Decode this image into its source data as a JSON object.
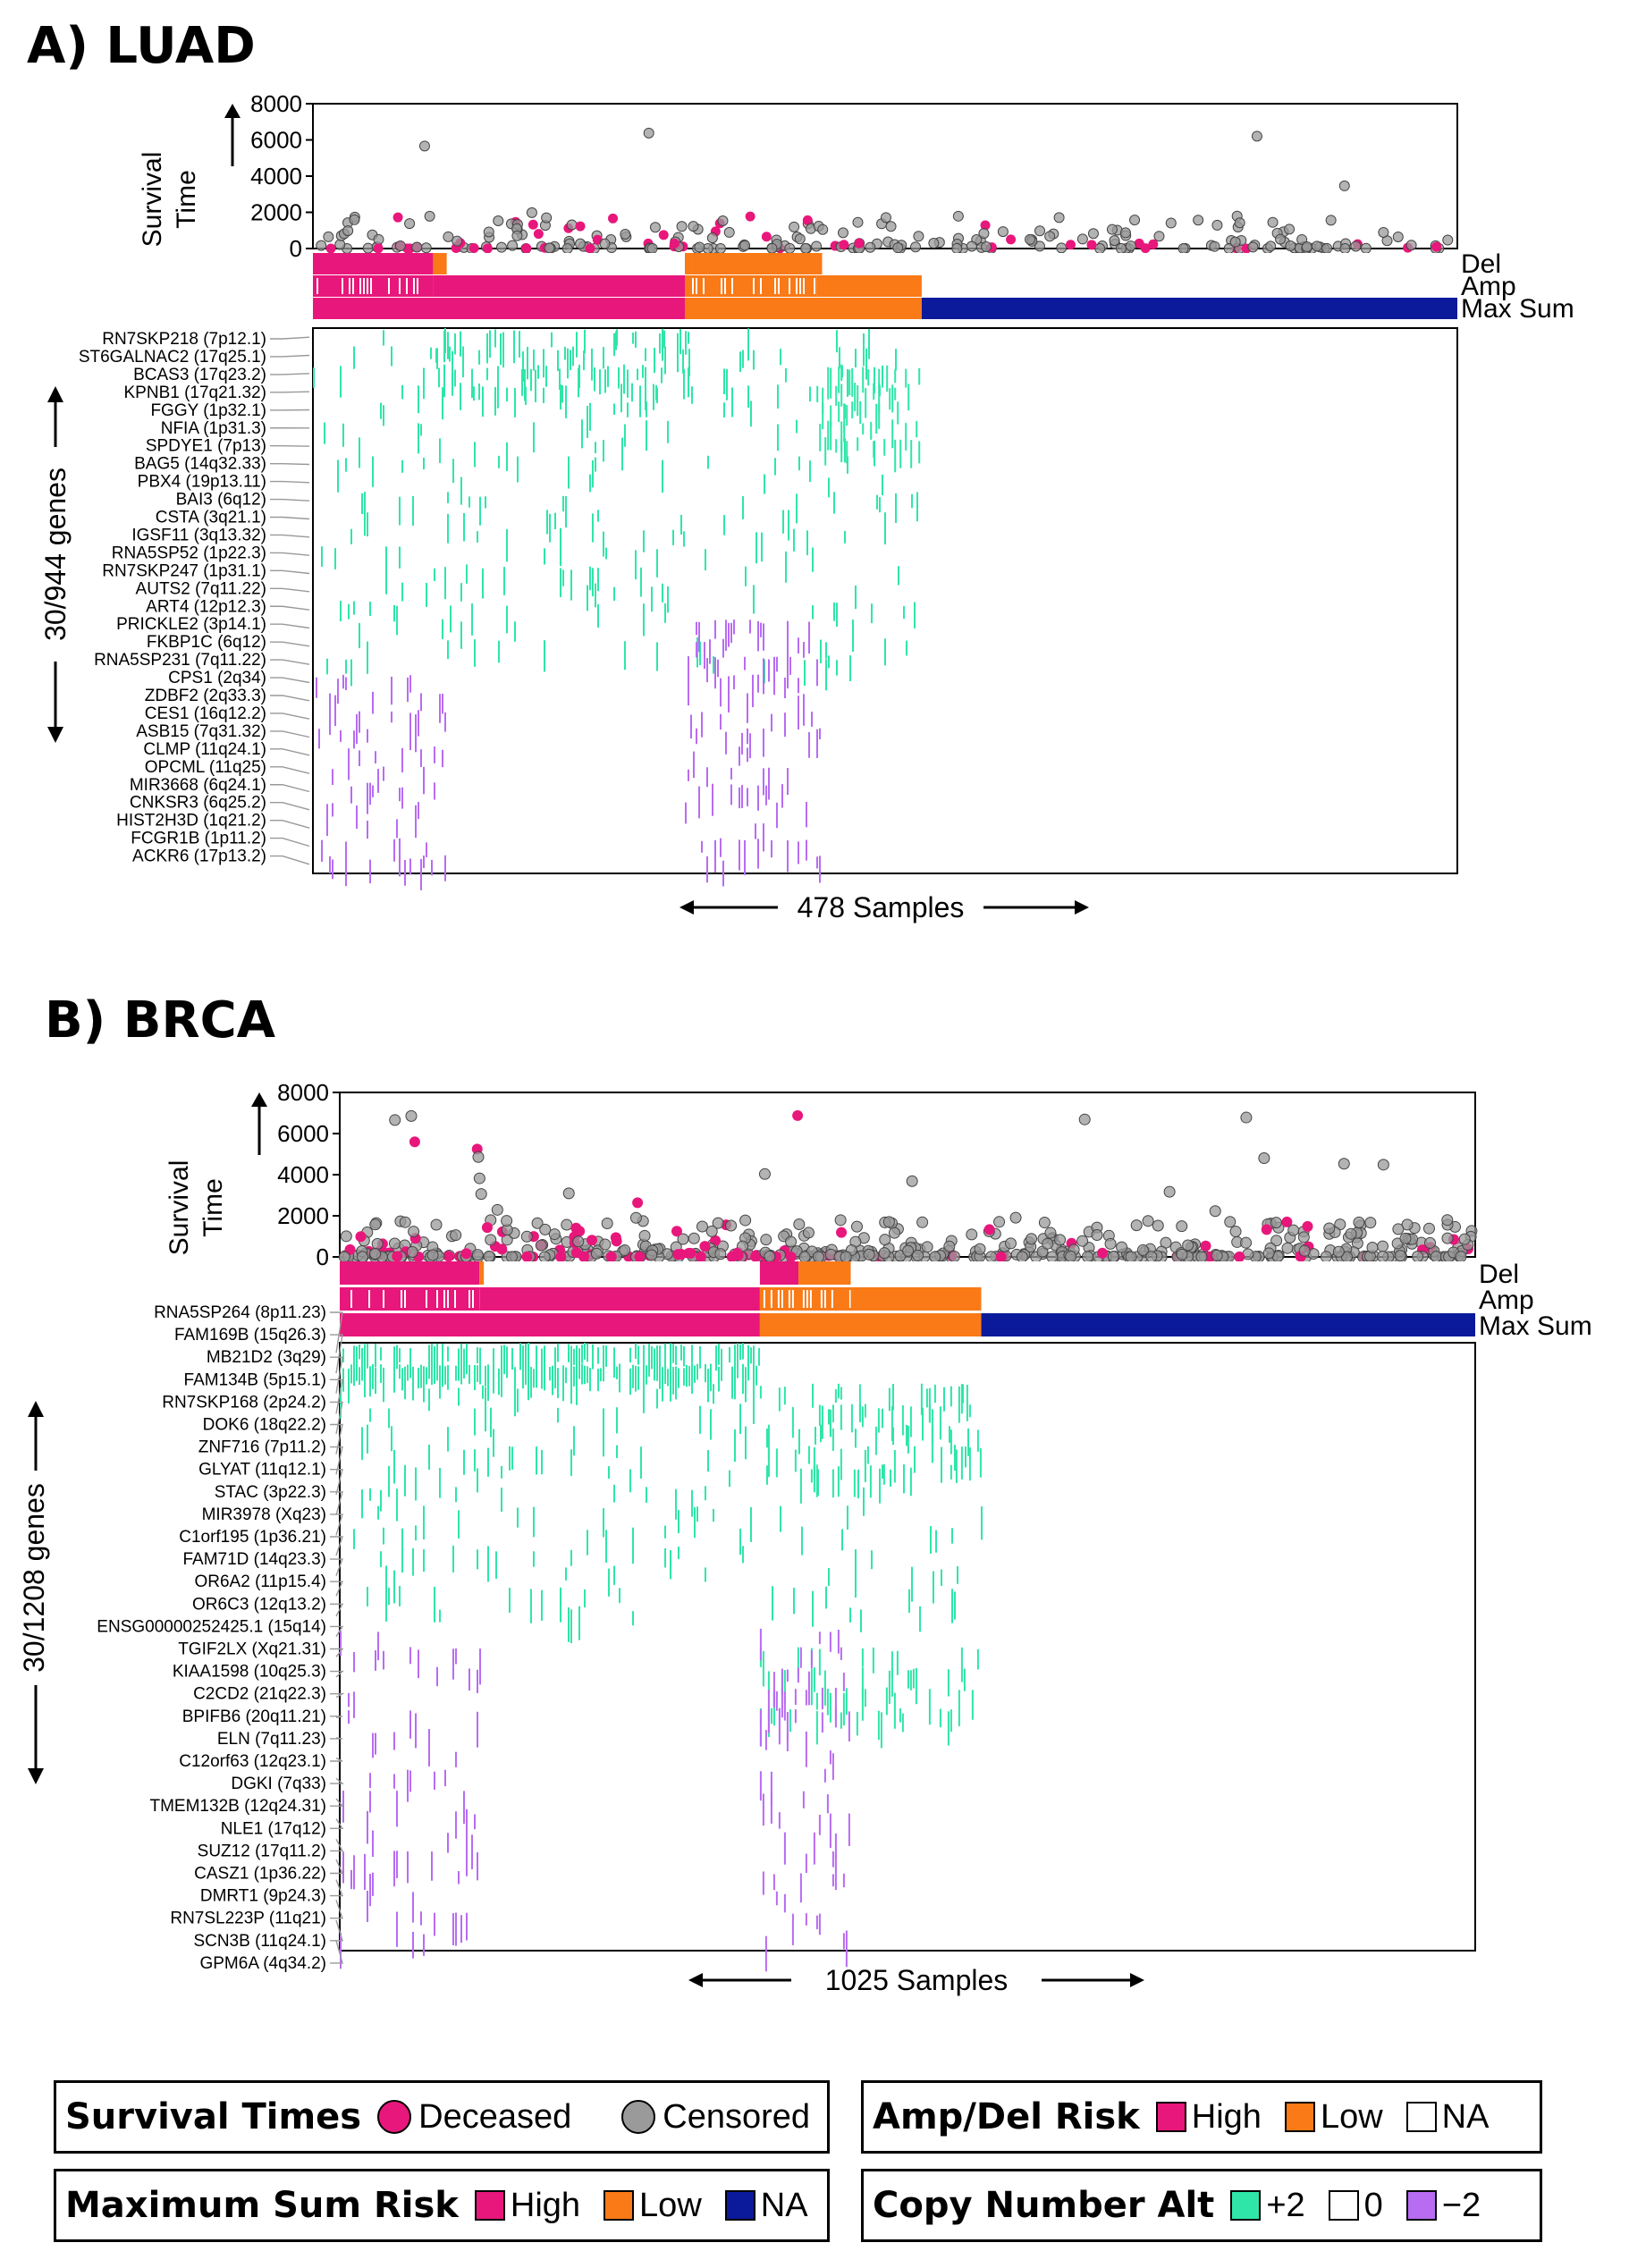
{
  "colors": {
    "deceased": "#e8177b",
    "censored": "#9a9a9a",
    "high": "#e8177b",
    "low": "#f97a17",
    "na_fill": "#ffffff",
    "max_na": "#0a1a9a",
    "cna_plus": "#2fe6a8",
    "cna_minus": "#b86cf2"
  },
  "chart_data": [
    {
      "panel": "A) LUAD",
      "type": "heatmap",
      "survival": {
        "ylabel_line1": "Survival",
        "ylabel_line2": "Time",
        "yticks": [
          "8000",
          "6000",
          "4000",
          "2000",
          "0"
        ],
        "ylim": [
          0,
          8000
        ]
      },
      "track_labels": [
        "Del",
        "Amp",
        "Max Sum"
      ],
      "n_samples": 478,
      "samples_label": "478 Samples",
      "genes_label": "30/944 genes",
      "del_track": [
        {
          "from": 0,
          "to": 0.105,
          "risk": "high"
        },
        {
          "from": 0.105,
          "to": 0.117,
          "risk": "low"
        },
        {
          "from": 0.117,
          "to": 0.325,
          "risk": "na"
        },
        {
          "from": 0.325,
          "to": 0.332,
          "risk": "low"
        },
        {
          "from": 0.332,
          "to": 0.445,
          "risk": "low"
        },
        {
          "from": 0.445,
          "to": 1.0,
          "risk": "na"
        }
      ],
      "amp_track": [
        {
          "from": 0,
          "to": 0.105,
          "risk": "high_mixed"
        },
        {
          "from": 0.105,
          "to": 0.325,
          "risk": "high"
        },
        {
          "from": 0.325,
          "to": 0.44,
          "risk": "low_mixed"
        },
        {
          "from": 0.44,
          "to": 0.532,
          "risk": "low"
        },
        {
          "from": 0.532,
          "to": 1.0,
          "risk": "na"
        }
      ],
      "max_track": [
        {
          "from": 0,
          "to": 0.325,
          "risk": "high"
        },
        {
          "from": 0.325,
          "to": 0.532,
          "risk": "low"
        },
        {
          "from": 0.532,
          "to": 1.0,
          "risk": "na_blue"
        }
      ],
      "genes": [
        "RN7SKP218 (7p12.1)",
        "ST6GALNAC2 (17q25.1)",
        "BCAS3 (17q23.2)",
        "KPNB1 (17q21.32)",
        "FGGY (1p32.1)",
        "NFIA (1p31.3)",
        "SPDYE1 (7p13)",
        "BAG5 (14q32.33)",
        "PBX4 (19p13.11)",
        "BAI3 (6q12)",
        "CSTA (3q21.1)",
        "IGSF11 (3q13.32)",
        "RNA5SP52 (1p22.3)",
        "RN7SKP247 (1p31.1)",
        "AUTS2 (7q11.22)",
        "ART4 (12p12.3)",
        "PRICKLE2 (3p14.1)",
        "FKBP1C (6q12)",
        "RNA5SP231 (7q11.22)",
        "CPS1 (2q34)",
        "ZDBF2 (2q33.3)",
        "CES1 (16q12.2)",
        "ASB15 (7q31.32)",
        "CLMP (11q24.1)",
        "OPCML (11q25)",
        "MIR3668 (6q24.1)",
        "CNKSR3 (6q25.2)",
        "HIST2H3D (1q21.2)",
        "FCGR1B (1p11.2)",
        "ACKR6 (17p13.2)"
      ],
      "cna_blocks": [
        {
          "sign": "plus",
          "x0": 0.0,
          "x1": 0.53,
          "rows": [
            0,
            18
          ],
          "density": 0.05
        },
        {
          "sign": "plus",
          "x0": 0.1,
          "x1": 0.33,
          "rows": [
            0,
            3
          ],
          "density": 0.18
        },
        {
          "sign": "plus",
          "x0": 0.44,
          "x1": 0.53,
          "rows": [
            2,
            6
          ],
          "density": 0.25
        },
        {
          "sign": "minus",
          "x0": 0.0,
          "x1": 0.115,
          "rows": [
            19,
            29
          ],
          "density": 0.12
        },
        {
          "sign": "minus",
          "x0": 0.325,
          "x1": 0.445,
          "rows": [
            16,
            29
          ],
          "density": 0.14
        }
      ]
    },
    {
      "panel": "B) BRCA",
      "type": "heatmap",
      "survival": {
        "ylabel_line1": "Survival",
        "ylabel_line2": "Time",
        "yticks": [
          "8000",
          "6000",
          "4000",
          "2000",
          "0"
        ],
        "ylim": [
          0,
          8000
        ]
      },
      "track_labels": [
        "Del",
        "Amp",
        "Max Sum"
      ],
      "n_samples": 1025,
      "samples_label": "1025 Samples",
      "genes_label": "30/1208 genes",
      "del_track": [
        {
          "from": 0,
          "to": 0.123,
          "risk": "high"
        },
        {
          "from": 0.123,
          "to": 0.127,
          "risk": "low"
        },
        {
          "from": 0.127,
          "to": 0.37,
          "risk": "na"
        },
        {
          "from": 0.37,
          "to": 0.404,
          "risk": "high"
        },
        {
          "from": 0.404,
          "to": 0.45,
          "risk": "low"
        },
        {
          "from": 0.45,
          "to": 1.0,
          "risk": "na"
        }
      ],
      "amp_track": [
        {
          "from": 0,
          "to": 0.123,
          "risk": "high_mixed"
        },
        {
          "from": 0.123,
          "to": 0.37,
          "risk": "high"
        },
        {
          "from": 0.37,
          "to": 0.45,
          "risk": "low_mixed"
        },
        {
          "from": 0.45,
          "to": 0.565,
          "risk": "low"
        },
        {
          "from": 0.565,
          "to": 1.0,
          "risk": "na"
        }
      ],
      "max_track": [
        {
          "from": 0,
          "to": 0.37,
          "risk": "high"
        },
        {
          "from": 0.37,
          "to": 0.565,
          "risk": "low"
        },
        {
          "from": 0.565,
          "to": 1.0,
          "risk": "na_blue"
        }
      ],
      "genes": [
        "RNA5SP264 (8p11.23)",
        "FAM169B (15q26.3)",
        "MB21D2 (3q29)",
        "FAM134B (5p15.1)",
        "RN7SKP168 (2p24.2)",
        "DOK6 (18q22.2)",
        "ZNF716 (7p11.2)",
        "GLYAT (11q12.1)",
        "STAC (3p22.3)",
        "MIR3978 (Xq23)",
        "C1orf195 (1p36.21)",
        "FAM71D (14q23.3)",
        "OR6A2 (11p15.4)",
        "OR6C3 (12q13.2)",
        "ENSG00000252425.1 (15q14)",
        "TGIF2LX (Xq21.31)",
        "KIAA1598 (10q25.3)",
        "C2CD2 (21q22.3)",
        "BPIFB6 (20q11.21)",
        "ELN (7q11.23)",
        "C12orf63 (12q23.1)",
        "DGKI (7q33)",
        "TMEM132B (12q24.31)",
        "NLE1 (17q12)",
        "SUZ12 (17q11.2)",
        "CASZ1 (1p36.22)",
        "DMRT1 (9p24.3)",
        "RN7SL223P (11q21)",
        "SCN3B (11q24.1)",
        "GPM6A (4q34.2)"
      ],
      "cna_blocks": [
        {
          "sign": "plus",
          "x0": 0.0,
          "x1": 0.37,
          "rows": [
            0,
            1
          ],
          "density": 0.55
        },
        {
          "sign": "plus",
          "x0": 0.0,
          "x1": 0.565,
          "rows": [
            2,
            13
          ],
          "density": 0.06
        },
        {
          "sign": "plus",
          "x0": 0.37,
          "x1": 0.565,
          "rows": [
            2,
            6
          ],
          "density": 0.18
        },
        {
          "sign": "plus",
          "x0": 0.37,
          "x1": 0.565,
          "rows": [
            15,
            18
          ],
          "density": 0.14
        },
        {
          "sign": "minus",
          "x0": 0.0,
          "x1": 0.125,
          "rows": [
            14,
            29
          ],
          "density": 0.1
        },
        {
          "sign": "minus",
          "x0": 0.37,
          "x1": 0.45,
          "rows": [
            14,
            29
          ],
          "density": 0.14
        }
      ]
    }
  ],
  "legend": {
    "survival": {
      "title": "Survival Times",
      "deceased": "Deceased",
      "censored": "Censored"
    },
    "ampdel": {
      "title": "Amp/Del Risk",
      "high": "High",
      "low": "Low",
      "na": "NA"
    },
    "maxsum": {
      "title": "Maximum Sum Risk",
      "high": "High",
      "low": "Low",
      "na": "NA"
    },
    "cna": {
      "title": "Copy Number Alt",
      "plus": "+2",
      "zero": "0",
      "minus": "−2"
    }
  }
}
